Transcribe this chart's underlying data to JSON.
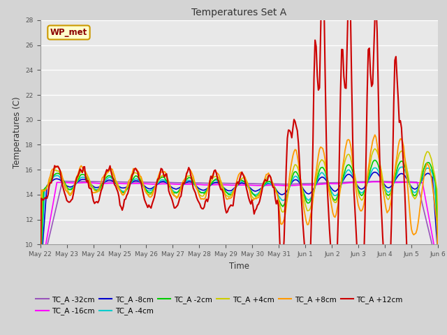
{
  "title": "Temperatures Set A",
  "xlabel": "Time",
  "ylabel": "Temperatures (C)",
  "ylim": [
    10,
    28
  ],
  "yticks": [
    10,
    12,
    14,
    16,
    18,
    20,
    22,
    24,
    26,
    28
  ],
  "fig_bg_color": "#d4d4d4",
  "plot_bg_color": "#e8e8e8",
  "wp_met_label": "WP_met",
  "series_colors": {
    "TC_A -32cm": "#9955bb",
    "TC_A -16cm": "#ff00ff",
    "TC_A -8cm": "#0000cc",
    "TC_A -4cm": "#00cccc",
    "TC_A -2cm": "#00cc00",
    "TC_A +4cm": "#cccc00",
    "TC_A +8cm": "#ff9900",
    "TC_A +12cm": "#cc0000"
  },
  "x_tick_labels": [
    "May 22",
    "May 23",
    "May 24",
    "May 25",
    "May 26",
    "May 27",
    "May 28",
    "May 29",
    "May 30",
    "May 31",
    "Jun 1",
    "Jun 2",
    "Jun 3",
    "Jun 4",
    "Jun 5",
    "Jun 6"
  ]
}
